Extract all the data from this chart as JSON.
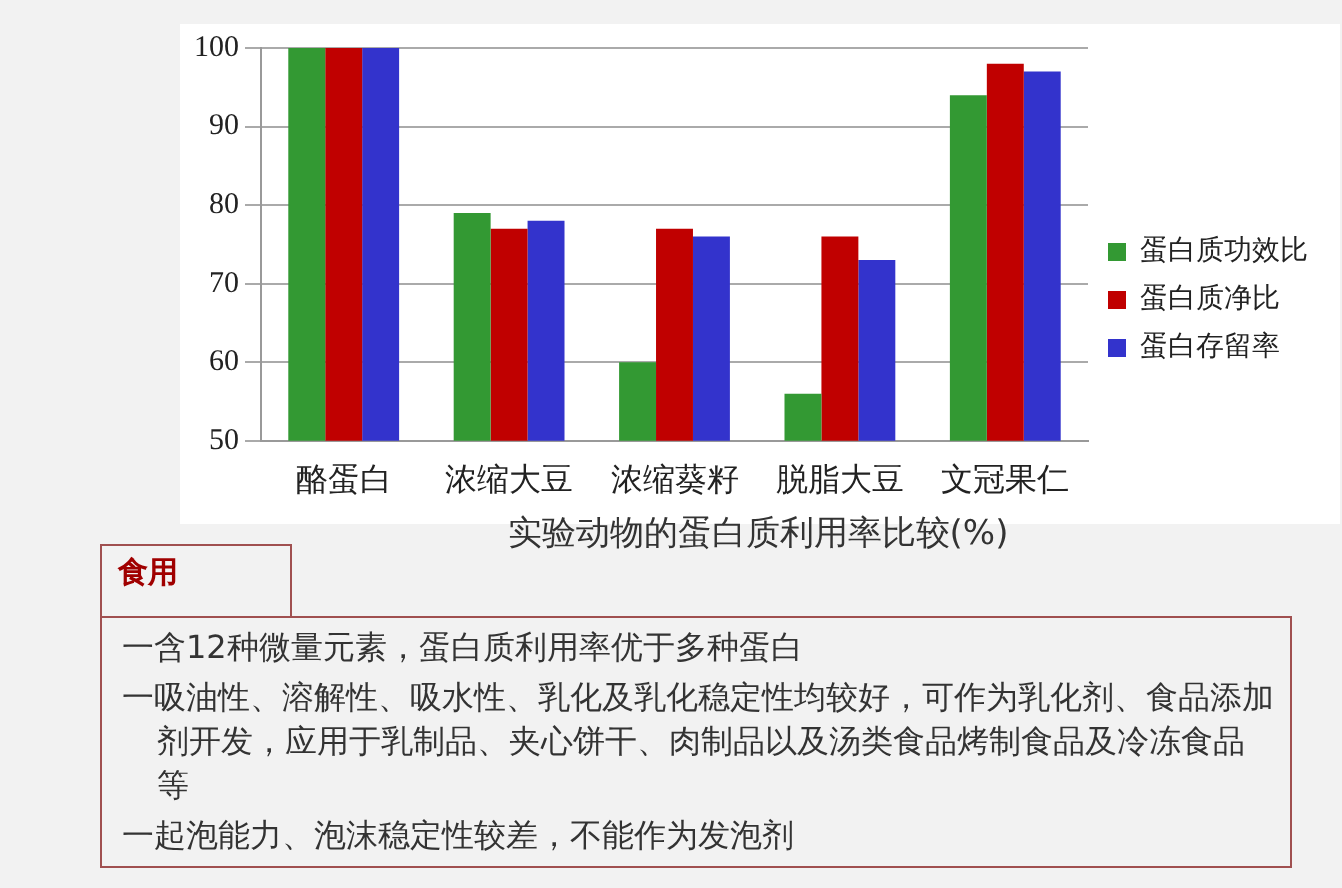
{
  "chart_data": {
    "type": "bar",
    "title": "实验动物的蛋白质利用率比较(%)",
    "categories": [
      "酪蛋白",
      "浓缩大豆",
      "浓缩葵籽",
      "脱脂大豆",
      "文冠果仁"
    ],
    "series": [
      {
        "name": "蛋白质功效比",
        "color": "#339933",
        "values": [
          100,
          79,
          60,
          56,
          94
        ]
      },
      {
        "name": "蛋白质净比",
        "color": "#c00000",
        "values": [
          100,
          77,
          77,
          76,
          98
        ]
      },
      {
        "name": "蛋白存留率",
        "color": "#3333cc",
        "values": [
          100,
          78,
          76,
          73,
          97
        ]
      }
    ],
    "ylim": [
      50,
      100
    ],
    "yticks": [
      50,
      60,
      70,
      80,
      90,
      100
    ],
    "grid": "y",
    "legend": "right",
    "annotations": [
      "食用",
      "一含12种微量元素，蛋白质利用率优于多种蛋白",
      "一吸油性、溶解性、吸水性、乳化及乳化稳定性均较好，可作为乳化剂、食品添加剂开发，应用于乳制品、夹心饼干、肉制品以及汤类食品烤制食品及冷冻食品等",
      "一起泡能力、泡沫稳定性较差，不能作为发泡剂"
    ]
  }
}
